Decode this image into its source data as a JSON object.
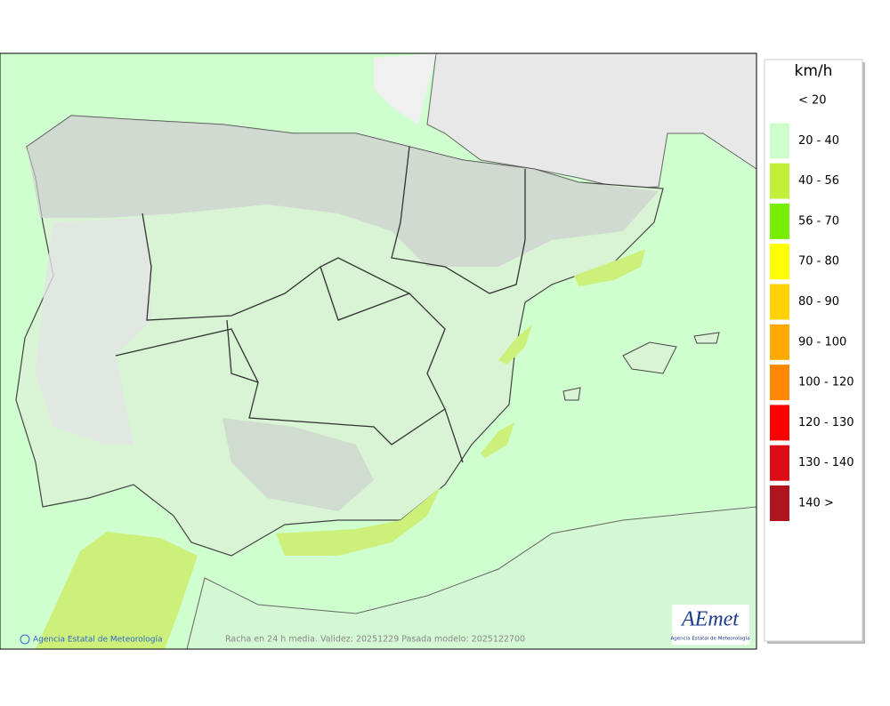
{
  "map": {
    "legend": {
      "title": "km/h",
      "items": [
        {
          "label": "< 20",
          "color": "#ffffff"
        },
        {
          "label": "20 - 40",
          "color": "#ccffcc"
        },
        {
          "label": "40 - 56",
          "color": "#c2f03a"
        },
        {
          "label": "56 - 70",
          "color": "#77ee00"
        },
        {
          "label": "70 - 80",
          "color": "#ffff00"
        },
        {
          "label": "80 - 90",
          "color": "#ffd200"
        },
        {
          "label": "90 - 100",
          "color": "#ffaa00"
        },
        {
          "label": "100 - 120",
          "color": "#ff8800"
        },
        {
          "label": "120 - 130",
          "color": "#ff0000"
        },
        {
          "label": "130 - 140",
          "color": "#dd0c14"
        },
        {
          "label": "140 >",
          "color": "#b0141e"
        }
      ]
    },
    "credit": "Agencia Estatal de Meteorología",
    "caption": "Racha en 24 h media. Validez: 20251229 Pasada modelo: 2025122700",
    "logo": {
      "name": "AEmet",
      "subtitle": "Agencia Estatal de Meteorología"
    }
  }
}
